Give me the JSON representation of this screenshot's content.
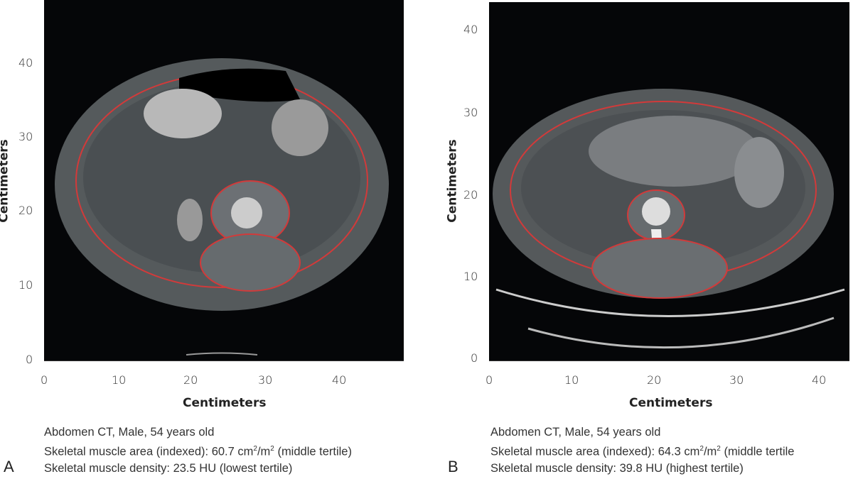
{
  "figure": {
    "panels": [
      {
        "letter": "A",
        "x_axis": {
          "label": "Centimeters",
          "ticks": [
            0,
            10,
            20,
            30,
            40
          ],
          "range": [
            0,
            48.5
          ]
        },
        "y_axis": {
          "label": "Centimeters",
          "ticks": [
            0,
            10,
            20,
            30,
            40
          ],
          "range": [
            0,
            48.5
          ]
        },
        "caption": {
          "line1": "Abdomen CT, Male, 54 years old",
          "line2_prefix": "Skeletal muscle area (indexed): 60.7 cm",
          "line2_sup1": "2",
          "line2_mid": "/m",
          "line2_sup2": "2",
          "line2_suffix": " (middle tertile)",
          "line3": "Skeletal muscle density: 23.5 HU (lowest tertile)"
        }
      },
      {
        "letter": "B",
        "x_axis": {
          "label": "Centimeters",
          "ticks": [
            0,
            10,
            20,
            30,
            40
          ],
          "range": [
            0,
            43.7
          ]
        },
        "y_axis": {
          "label": "Centimeters",
          "ticks": [
            0,
            10,
            20,
            30,
            40
          ],
          "range": [
            0,
            43.5
          ]
        },
        "caption": {
          "line1": "Abdomen CT, Male, 54 years old",
          "line2_prefix": "Skeletal muscle area (indexed): 64.3 cm",
          "line2_sup1": "2",
          "line2_mid": "/m",
          "line2_sup2": "2",
          "line2_suffix": " (middle tertile",
          "line3": "Skeletal muscle density: 39.8 HU (highest tertile)"
        }
      }
    ],
    "colors": {
      "muscle_outline": "#d23a3a",
      "background": "#050608"
    }
  }
}
